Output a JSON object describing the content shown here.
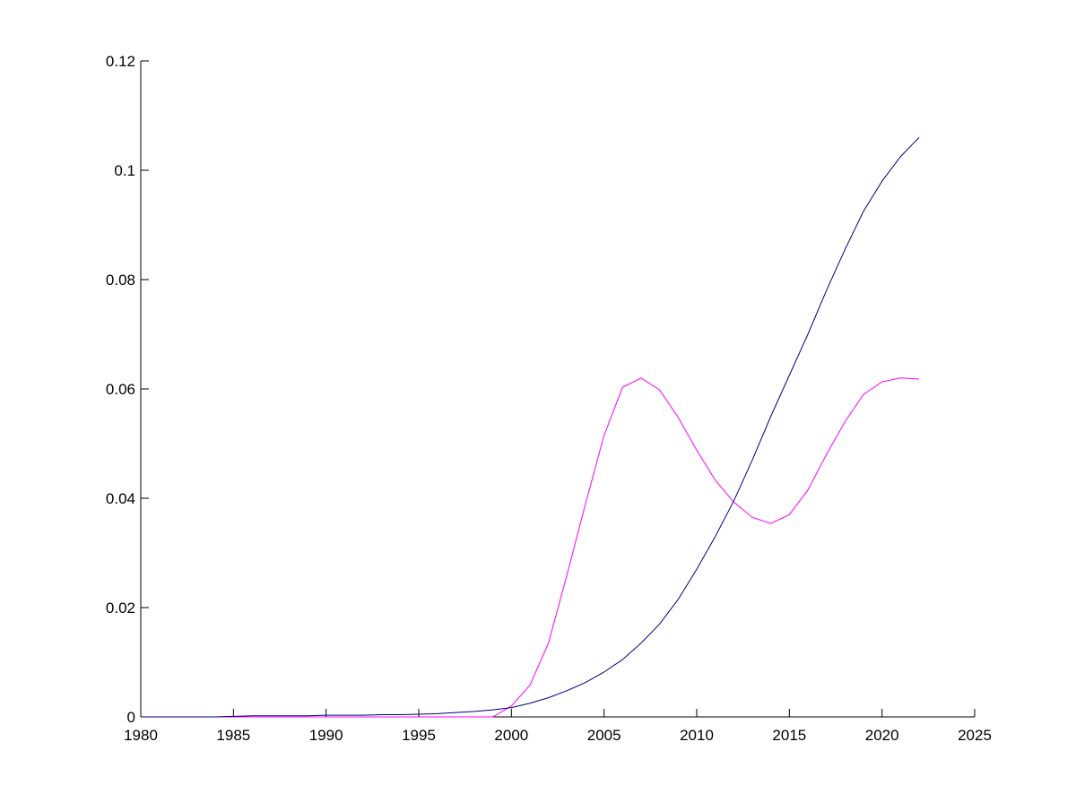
{
  "chart_data": {
    "type": "line",
    "x": [
      1980,
      1981,
      1982,
      1983,
      1984,
      1985,
      1986,
      1987,
      1988,
      1989,
      1990,
      1991,
      1992,
      1993,
      1994,
      1995,
      1996,
      1997,
      1998,
      1999,
      2000,
      2001,
      2002,
      2003,
      2004,
      2005,
      2006,
      2007,
      2008,
      2009,
      2010,
      2011,
      2012,
      2013,
      2014,
      2015,
      2016,
      2017,
      2018,
      2019,
      2020,
      2021,
      2022
    ],
    "series": [
      {
        "color": "#ff00ff",
        "values": [
          0,
          0,
          0,
          0,
          0,
          0,
          0,
          0,
          0,
          0,
          0,
          0,
          0,
          0,
          0,
          0,
          0,
          0,
          0,
          0,
          0.002,
          0.0058,
          0.0135,
          0.026,
          0.039,
          0.0515,
          0.0603,
          0.062,
          0.0598,
          0.0548,
          0.0488,
          0.0433,
          0.0393,
          0.0365,
          0.0354,
          0.037,
          0.0415,
          0.048,
          0.054,
          0.059,
          0.0613,
          0.062,
          0.0618
        ]
      },
      {
        "color": "#000080",
        "values": [
          0,
          0,
          0,
          0,
          0,
          0.0001,
          0.0002,
          0.0002,
          0.0002,
          0.0002,
          0.0003,
          0.0003,
          0.0003,
          0.0004,
          0.0004,
          0.0005,
          0.0006,
          0.0008,
          0.001,
          0.0013,
          0.0017,
          0.0025,
          0.0035,
          0.0048,
          0.0063,
          0.0082,
          0.0105,
          0.0135,
          0.017,
          0.0215,
          0.027,
          0.033,
          0.0395,
          0.047,
          0.055,
          0.0625,
          0.07,
          0.078,
          0.0855,
          0.0925,
          0.098,
          0.1025,
          0.106
        ]
      }
    ],
    "xlim": [
      1980,
      2025
    ],
    "xticks": [
      1980,
      1985,
      1990,
      1995,
      2000,
      2005,
      2010,
      2015,
      2020,
      2025
    ],
    "ylim": [
      0,
      0.12
    ],
    "yticks": [
      0,
      0.02,
      0.04,
      0.06,
      0.08,
      0.1,
      0.12
    ]
  }
}
